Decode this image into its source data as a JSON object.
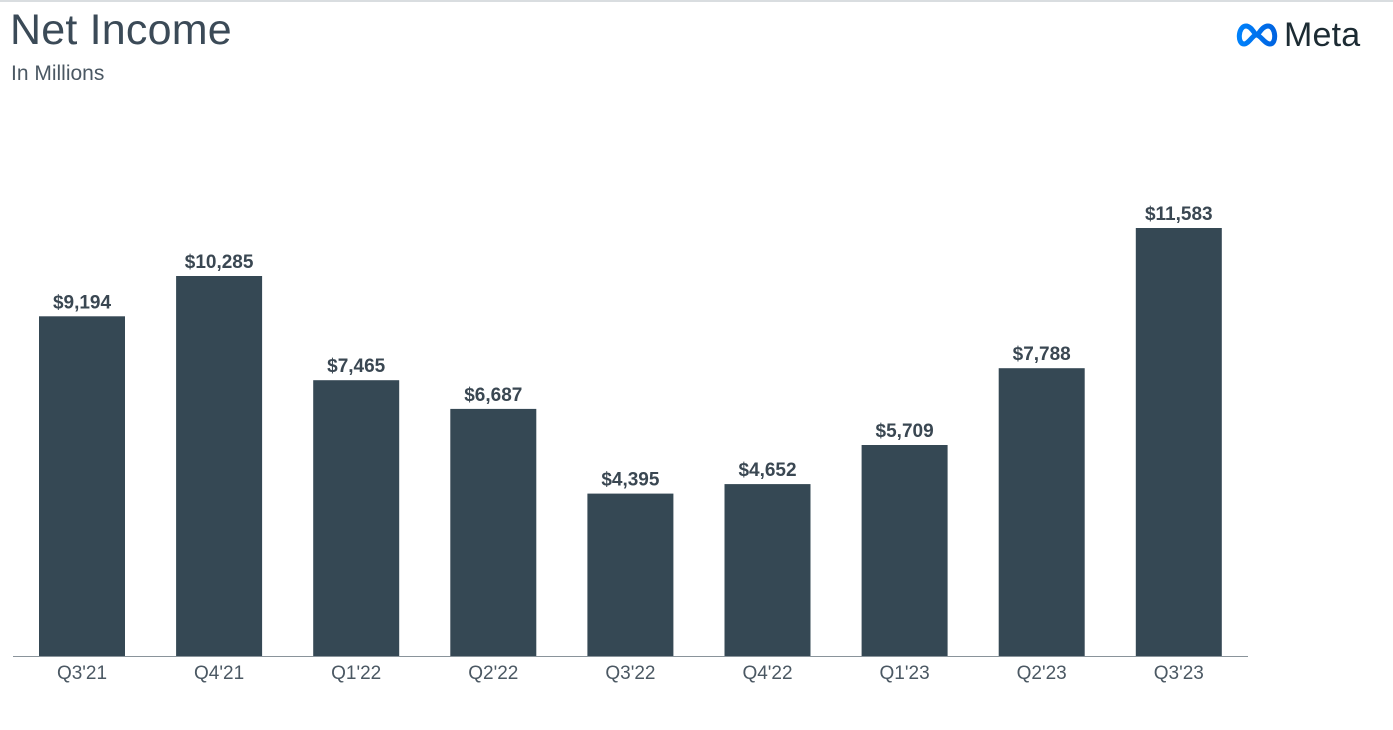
{
  "header": {
    "title": "Net Income",
    "subtitle": "In Millions"
  },
  "logo": {
    "icon": "meta-infinity-icon",
    "text": "Meta"
  },
  "colors": {
    "bar": "#354854",
    "brand_gradient_start": "#0081fb",
    "brand_gradient_end": "#0064e1"
  },
  "chart_data": {
    "type": "bar",
    "title": "Net Income",
    "subtitle": "In Millions",
    "xlabel": "",
    "ylabel": "",
    "categories": [
      "Q3'21",
      "Q4'21",
      "Q1'22",
      "Q2'22",
      "Q3'22",
      "Q4'22",
      "Q1'23",
      "Q2'23",
      "Q3'23"
    ],
    "values": [
      9194,
      10285,
      7465,
      6687,
      4395,
      4652,
      5709,
      7788,
      11583
    ],
    "data_labels": [
      "$9,194",
      "$10,285",
      "$7,465",
      "$6,687",
      "$4,395",
      "$4,652",
      "$5,709",
      "$7,788",
      "$11,583"
    ],
    "ylim": [
      0,
      11583
    ],
    "grid": false,
    "legend": "none"
  }
}
